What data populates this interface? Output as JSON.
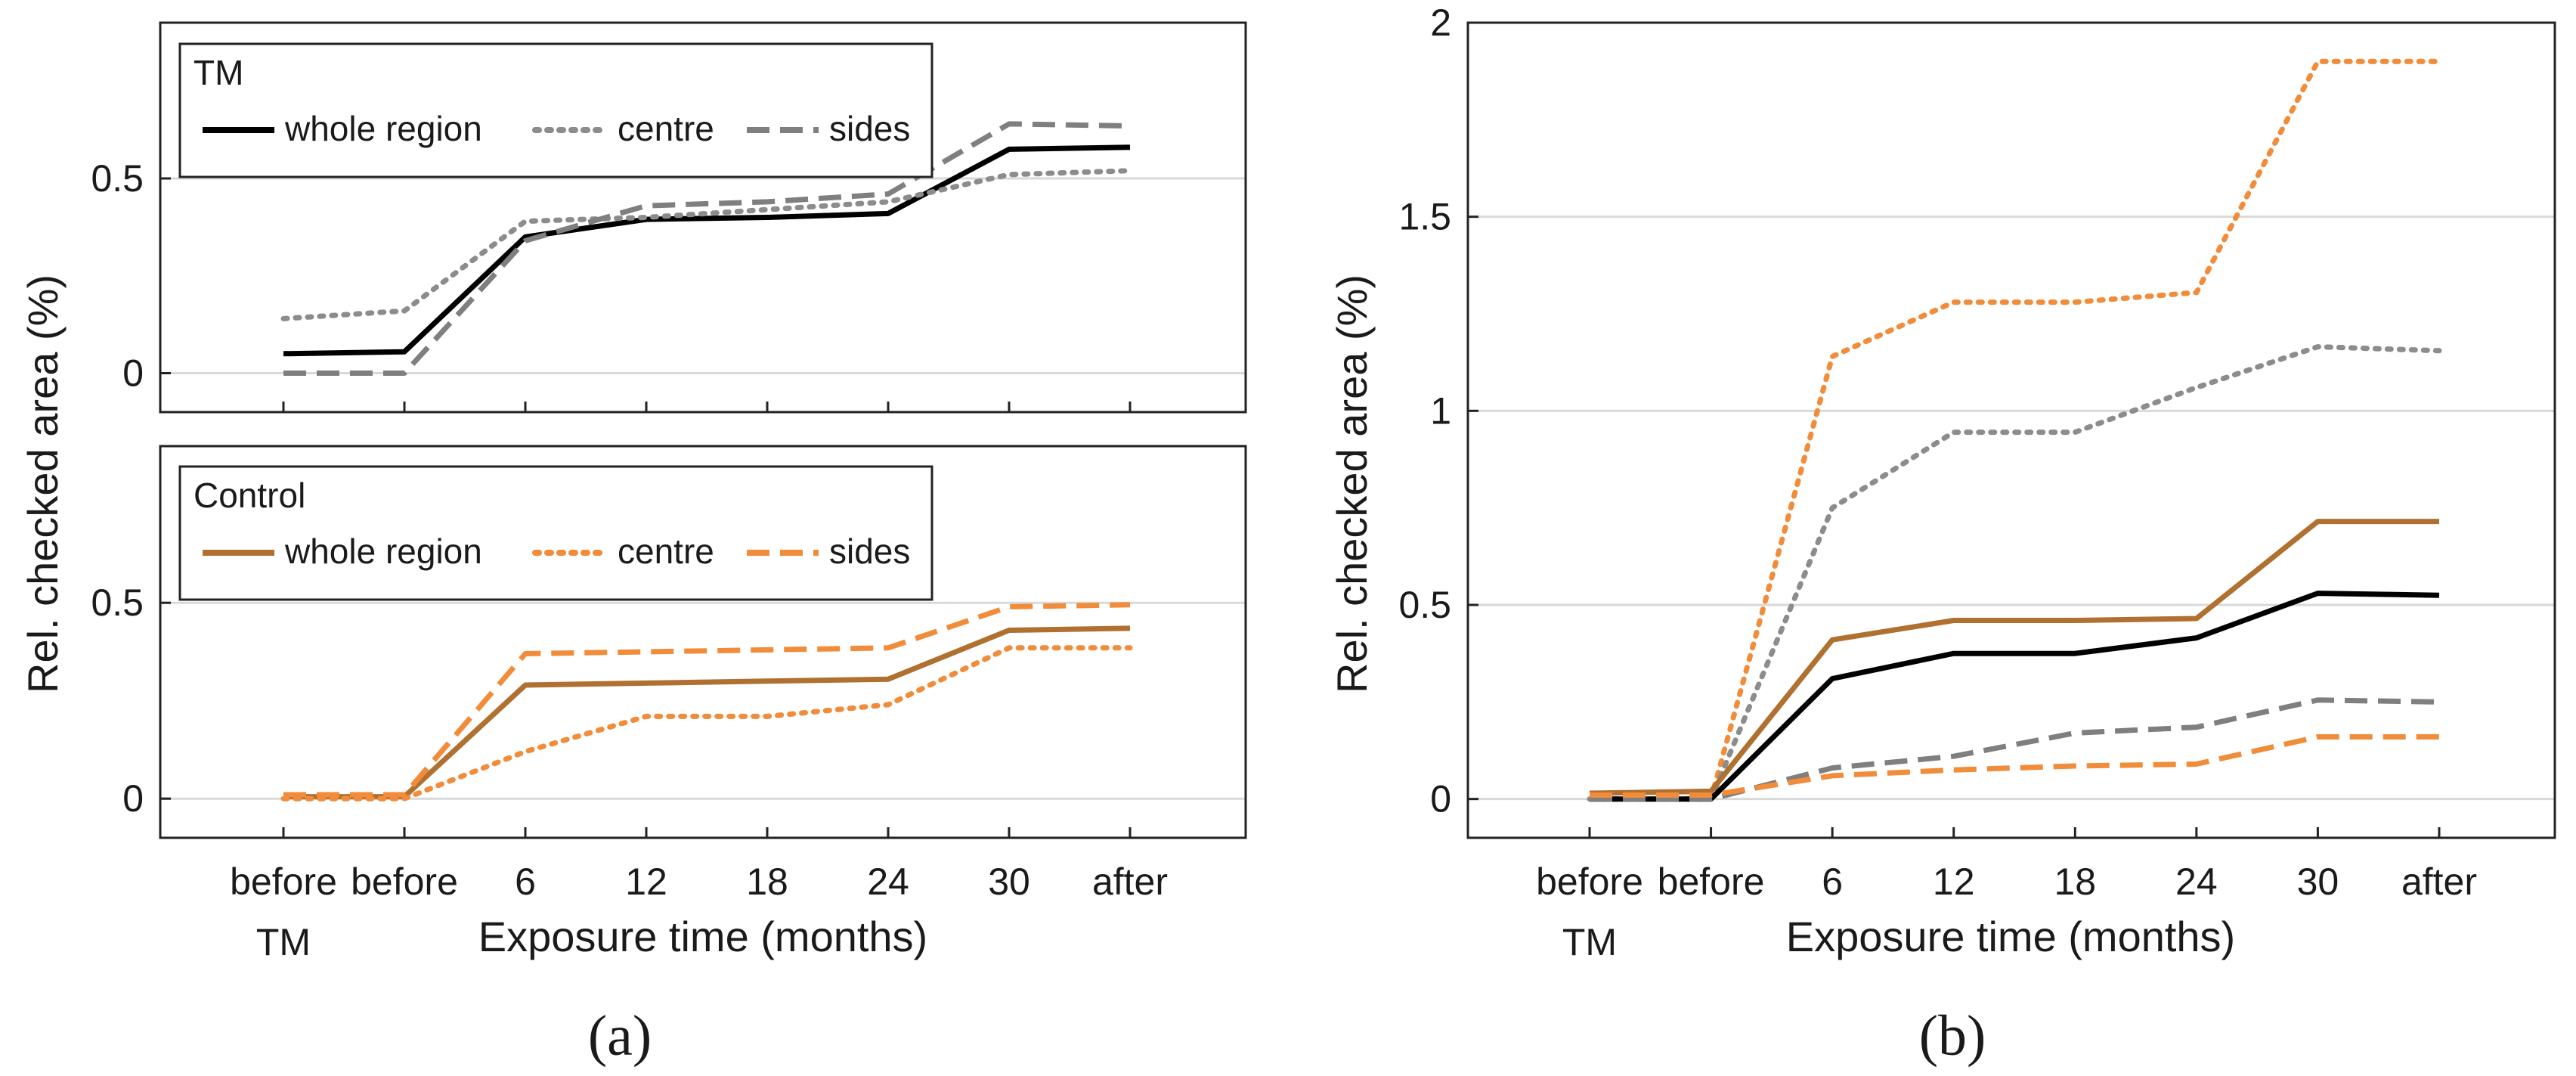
{
  "chart_data": [
    {
      "panel": "a",
      "panel_label": "(a)",
      "type": "line",
      "xlabel": "Exposure time (months)",
      "ylabel": "Rel. checked area (%)",
      "categories": [
        "before",
        "before",
        "6",
        "12",
        "18",
        "24",
        "30",
        "after"
      ],
      "first_category_sublabel": "TM",
      "subplots": [
        {
          "legend_title": "TM",
          "legend_position": "top-left",
          "ylim": [
            -0.1,
            0.9
          ],
          "yticks": [
            0,
            0.5
          ],
          "ytick_labels": [
            "0",
            "0.5"
          ],
          "grid": "horizontal",
          "series": [
            {
              "name": "whole region",
              "style": "solid",
              "color": "#000000",
              "values": [
                0.05,
                0.055,
                0.35,
                0.395,
                0.4,
                0.41,
                0.575,
                0.58
              ]
            },
            {
              "name": "centre",
              "style": "dotted",
              "color": "#8c8c8c",
              "values": [
                0.14,
                0.16,
                0.39,
                0.4,
                0.42,
                0.44,
                0.51,
                0.52
              ]
            },
            {
              "name": "sides",
              "style": "dashed",
              "color": "#7f7f7f",
              "values": [
                0.0,
                0.0,
                0.34,
                0.43,
                0.44,
                0.46,
                0.64,
                0.635
              ]
            }
          ]
        },
        {
          "legend_title": "Control",
          "legend_position": "top-left",
          "ylim": [
            -0.1,
            0.9
          ],
          "yticks": [
            0,
            0.5
          ],
          "ytick_labels": [
            "0",
            "0.5"
          ],
          "grid": "horizontal",
          "series": [
            {
              "name": "whole region",
              "style": "solid",
              "color": "#b07030",
              "values": [
                0.005,
                0.005,
                0.29,
                0.295,
                0.3,
                0.305,
                0.43,
                0.435
              ]
            },
            {
              "name": "centre",
              "style": "dotted",
              "color": "#f08c3a",
              "values": [
                0.0,
                0.0,
                0.12,
                0.21,
                0.21,
                0.24,
                0.385,
                0.385
              ]
            },
            {
              "name": "sides",
              "style": "dashed",
              "color": "#f08c3a",
              "values": [
                0.01,
                0.01,
                0.37,
                0.375,
                0.38,
                0.385,
                0.49,
                0.495
              ]
            }
          ]
        }
      ]
    },
    {
      "panel": "b",
      "panel_label": "(b)",
      "type": "line",
      "xlabel": "Exposure time (months)",
      "ylabel": "Rel. checked area (%)",
      "categories": [
        "before",
        "before",
        "6",
        "12",
        "18",
        "24",
        "30",
        "after"
      ],
      "first_category_sublabel": "TM",
      "ylim": [
        -0.1,
        2.0
      ],
      "yticks": [
        0,
        0.5,
        1,
        1.5,
        2
      ],
      "ytick_labels": [
        "0",
        "0.5",
        "1",
        "1.5",
        "2"
      ],
      "grid": "horizontal",
      "series": [
        {
          "style": "dotted",
          "color": "#f08c3a",
          "values": [
            0.0,
            0.0,
            1.14,
            1.28,
            1.28,
            1.305,
            1.9,
            1.9
          ]
        },
        {
          "style": "dotted",
          "color": "#8c8c8c",
          "values": [
            0.0,
            0.0,
            0.75,
            0.945,
            0.945,
            1.06,
            1.165,
            1.155
          ]
        },
        {
          "style": "solid",
          "color": "#b07030",
          "values": [
            0.015,
            0.02,
            0.41,
            0.46,
            0.46,
            0.465,
            0.715,
            0.715
          ]
        },
        {
          "style": "solid",
          "color": "#000000",
          "values": [
            0.0,
            0.0,
            0.31,
            0.375,
            0.375,
            0.415,
            0.53,
            0.525
          ]
        },
        {
          "style": "dashed",
          "color": "#7f7f7f",
          "values": [
            0.0,
            0.0,
            0.08,
            0.11,
            0.17,
            0.185,
            0.255,
            0.25
          ]
        },
        {
          "style": "dashed",
          "color": "#f08c3a",
          "values": [
            0.01,
            0.01,
            0.06,
            0.075,
            0.085,
            0.09,
            0.16,
            0.16
          ]
        }
      ]
    }
  ]
}
